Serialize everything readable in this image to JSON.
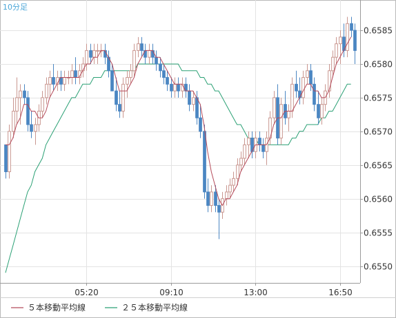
{
  "header": {
    "timeframe_label": "10分足"
  },
  "colors": {
    "up_candle_fill": "#ffffff",
    "up_candle_border": "#c9968f",
    "down_candle_fill": "#4b86c2",
    "down_candle_border": "#4b86c2",
    "ma5": "#b54a5a",
    "ma25": "#2aa074",
    "grid": "#e3e3e3",
    "axis": "#9a9a9a"
  },
  "legend": [
    {
      "label": "５本移動平均線",
      "color": "#b54a5a"
    },
    {
      "label": "２５本移動平均線",
      "color": "#2aa074"
    }
  ],
  "chart_data": {
    "type": "candlestick",
    "x_ticks": [
      {
        "label": "05:20",
        "index": 22
      },
      {
        "label": "09:10",
        "index": 45
      },
      {
        "label": "13:00",
        "index": 68
      },
      {
        "label": "16:50",
        "index": 91
      }
    ],
    "y_ticks": [
      "0.6585",
      "0.6580",
      "0.6575",
      "0.6570",
      "0.6565",
      "0.6560",
      "0.6555",
      "0.6550"
    ],
    "ylim": [
      0.65475,
      0.65895
    ],
    "grid": true,
    "legend_position": "bottom-left",
    "ohlc": [
      [
        0.6568,
        0.6568,
        0.6563,
        0.6564
      ],
      [
        0.6564,
        0.6571,
        0.6563,
        0.657
      ],
      [
        0.657,
        0.6575,
        0.6569,
        0.6573
      ],
      [
        0.6573,
        0.6578,
        0.6571,
        0.6575
      ],
      [
        0.6575,
        0.6577,
        0.6571,
        0.6576
      ],
      [
        0.6576,
        0.6577,
        0.6574,
        0.6575
      ],
      [
        0.6575,
        0.6576,
        0.657,
        0.6571
      ],
      [
        0.6571,
        0.6573,
        0.6569,
        0.657
      ],
      [
        0.657,
        0.6572,
        0.6568,
        0.6571
      ],
      [
        0.6571,
        0.6574,
        0.657,
        0.6573
      ],
      [
        0.6573,
        0.6576,
        0.6572,
        0.6575
      ],
      [
        0.6575,
        0.6578,
        0.6574,
        0.6577
      ],
      [
        0.6577,
        0.6579,
        0.6575,
        0.6578
      ],
      [
        0.6578,
        0.658,
        0.6576,
        0.6577
      ],
      [
        0.6577,
        0.6579,
        0.6576,
        0.6578
      ],
      [
        0.6578,
        0.6579,
        0.6576,
        0.6577
      ],
      [
        0.6577,
        0.6579,
        0.6576,
        0.6578
      ],
      [
        0.6578,
        0.6579,
        0.6577,
        0.6578
      ],
      [
        0.6578,
        0.658,
        0.6577,
        0.6579
      ],
      [
        0.6579,
        0.6581,
        0.6577,
        0.6578
      ],
      [
        0.6578,
        0.658,
        0.6577,
        0.6579
      ],
      [
        0.6579,
        0.6581,
        0.6578,
        0.658
      ],
      [
        0.658,
        0.6583,
        0.6579,
        0.6582
      ],
      [
        0.6582,
        0.6583,
        0.658,
        0.6581
      ],
      [
        0.6581,
        0.6583,
        0.658,
        0.6582
      ],
      [
        0.6582,
        0.6583,
        0.658,
        0.6582
      ],
      [
        0.6582,
        0.6583,
        0.6581,
        0.6582
      ],
      [
        0.6582,
        0.6583,
        0.658,
        0.6581
      ],
      [
        0.6581,
        0.6582,
        0.6578,
        0.6579
      ],
      [
        0.6579,
        0.658,
        0.6576,
        0.6576
      ],
      [
        0.6576,
        0.6578,
        0.6573,
        0.6574
      ],
      [
        0.6574,
        0.6576,
        0.6572,
        0.6573
      ],
      [
        0.6573,
        0.6578,
        0.6572,
        0.6577
      ],
      [
        0.6577,
        0.6579,
        0.6575,
        0.6578
      ],
      [
        0.6578,
        0.658,
        0.6577,
        0.6579
      ],
      [
        0.6579,
        0.6583,
        0.6578,
        0.6582
      ],
      [
        0.6582,
        0.6584,
        0.6581,
        0.6583
      ],
      [
        0.6583,
        0.6584,
        0.6581,
        0.6582
      ],
      [
        0.6582,
        0.6583,
        0.658,
        0.6581
      ],
      [
        0.6581,
        0.6583,
        0.658,
        0.6582
      ],
      [
        0.6582,
        0.6583,
        0.658,
        0.6581
      ],
      [
        0.6581,
        0.6582,
        0.6579,
        0.658
      ],
      [
        0.658,
        0.6581,
        0.6578,
        0.6579
      ],
      [
        0.6579,
        0.658,
        0.6577,
        0.6578
      ],
      [
        0.6578,
        0.6579,
        0.6576,
        0.6577
      ],
      [
        0.6577,
        0.6578,
        0.6575,
        0.6576
      ],
      [
        0.6576,
        0.6578,
        0.6575,
        0.6577
      ],
      [
        0.6577,
        0.6578,
        0.6575,
        0.6576
      ],
      [
        0.6576,
        0.6578,
        0.6575,
        0.6577
      ],
      [
        0.6577,
        0.6578,
        0.6575,
        0.6576
      ],
      [
        0.6576,
        0.6577,
        0.6573,
        0.6574
      ],
      [
        0.6574,
        0.6576,
        0.6573,
        0.6575
      ],
      [
        0.6575,
        0.6576,
        0.6571,
        0.6572
      ],
      [
        0.6572,
        0.6574,
        0.6569,
        0.657
      ],
      [
        0.657,
        0.6571,
        0.656,
        0.6561
      ],
      [
        0.6561,
        0.6563,
        0.6558,
        0.6559
      ],
      [
        0.6559,
        0.6562,
        0.6558,
        0.6561
      ],
      [
        0.6561,
        0.6562,
        0.6558,
        0.6559
      ],
      [
        0.6559,
        0.656,
        0.6554,
        0.6558
      ],
      [
        0.6558,
        0.6561,
        0.6557,
        0.656
      ],
      [
        0.656,
        0.6562,
        0.6559,
        0.6561
      ],
      [
        0.6561,
        0.6563,
        0.656,
        0.6562
      ],
      [
        0.6562,
        0.6564,
        0.6561,
        0.6563
      ],
      [
        0.6563,
        0.6566,
        0.6562,
        0.6565
      ],
      [
        0.6565,
        0.6567,
        0.6564,
        0.6566
      ],
      [
        0.6566,
        0.6569,
        0.6565,
        0.6568
      ],
      [
        0.6568,
        0.657,
        0.6566,
        0.6569
      ],
      [
        0.6569,
        0.657,
        0.6566,
        0.6567
      ],
      [
        0.6567,
        0.657,
        0.6566,
        0.6569
      ],
      [
        0.6569,
        0.657,
        0.6567,
        0.6568
      ],
      [
        0.6568,
        0.6569,
        0.6566,
        0.6567
      ],
      [
        0.6567,
        0.657,
        0.6565,
        0.6569
      ],
      [
        0.6569,
        0.6573,
        0.6568,
        0.6572
      ],
      [
        0.6572,
        0.6576,
        0.6571,
        0.6575
      ],
      [
        0.6575,
        0.6577,
        0.6568,
        0.6569
      ],
      [
        0.6569,
        0.6575,
        0.6568,
        0.6574
      ],
      [
        0.6574,
        0.6576,
        0.6571,
        0.6572
      ],
      [
        0.6572,
        0.6574,
        0.657,
        0.6573
      ],
      [
        0.6573,
        0.6578,
        0.6572,
        0.6577
      ],
      [
        0.6577,
        0.6579,
        0.6575,
        0.6576
      ],
      [
        0.6576,
        0.6578,
        0.6574,
        0.6575
      ],
      [
        0.6575,
        0.6579,
        0.6574,
        0.6578
      ],
      [
        0.6578,
        0.658,
        0.6577,
        0.6579
      ],
      [
        0.6579,
        0.658,
        0.6576,
        0.6577
      ],
      [
        0.6577,
        0.6578,
        0.6573,
        0.6574
      ],
      [
        0.6574,
        0.6576,
        0.6571,
        0.6572
      ],
      [
        0.6572,
        0.6575,
        0.6571,
        0.6574
      ],
      [
        0.6574,
        0.6577,
        0.6573,
        0.6576
      ],
      [
        0.6576,
        0.658,
        0.6575,
        0.6579
      ],
      [
        0.6579,
        0.6582,
        0.6578,
        0.6581
      ],
      [
        0.6581,
        0.6584,
        0.658,
        0.6583
      ],
      [
        0.6583,
        0.6585,
        0.658,
        0.6584
      ],
      [
        0.6584,
        0.6586,
        0.6581,
        0.6582
      ],
      [
        0.6582,
        0.6587,
        0.6581,
        0.6586
      ],
      [
        0.6586,
        0.6587,
        0.6584,
        0.6585
      ],
      [
        0.6585,
        0.6586,
        0.658,
        0.6582
      ]
    ],
    "series": [
      {
        "name": "５本移動平均線",
        "values": [
          0.6568,
          0.6568,
          0.6569,
          0.6571,
          0.6572,
          0.6574,
          0.6574,
          0.6573,
          0.6573,
          0.6572,
          0.6572,
          0.6573,
          0.6575,
          0.6576,
          0.6577,
          0.6578,
          0.6578,
          0.6578,
          0.6578,
          0.6578,
          0.6578,
          0.6579,
          0.658,
          0.658,
          0.6581,
          0.6581,
          0.6582,
          0.6582,
          0.6581,
          0.658,
          0.6578,
          0.6576,
          0.6576,
          0.6576,
          0.6577,
          0.6578,
          0.658,
          0.6581,
          0.6582,
          0.6582,
          0.6582,
          0.6581,
          0.6581,
          0.658,
          0.6579,
          0.6578,
          0.6577,
          0.6577,
          0.6577,
          0.6576,
          0.6576,
          0.6576,
          0.6575,
          0.6574,
          0.6571,
          0.6567,
          0.6564,
          0.6562,
          0.656,
          0.6559,
          0.656,
          0.656,
          0.6561,
          0.6562,
          0.6564,
          0.6565,
          0.6566,
          0.6567,
          0.6568,
          0.6568,
          0.6568,
          0.6568,
          0.6569,
          0.6571,
          0.6572,
          0.6572,
          0.6573,
          0.6573,
          0.6573,
          0.6574,
          0.6575,
          0.6576,
          0.6577,
          0.6577,
          0.6576,
          0.6576,
          0.6575,
          0.6575,
          0.6576,
          0.6578,
          0.658,
          0.6581,
          0.6582,
          0.6583,
          0.6584
        ]
      },
      {
        "name": "２５本移動平均線",
        "values": [
          0.6549,
          0.6551,
          0.6553,
          0.6555,
          0.6557,
          0.6559,
          0.6561,
          0.6562,
          0.6564,
          0.6565,
          0.6566,
          0.6568,
          0.6569,
          0.657,
          0.6571,
          0.6572,
          0.6573,
          0.6574,
          0.6575,
          0.6575,
          0.6576,
          0.6577,
          0.6577,
          0.6577,
          0.6578,
          0.6578,
          0.6578,
          0.6579,
          0.6579,
          0.6579,
          0.6579,
          0.6579,
          0.6579,
          0.6579,
          0.6579,
          0.6579,
          0.658,
          0.658,
          0.658,
          0.658,
          0.658,
          0.658,
          0.658,
          0.658,
          0.658,
          0.658,
          0.658,
          0.658,
          0.6579,
          0.6579,
          0.6579,
          0.6579,
          0.6579,
          0.6578,
          0.6578,
          0.6577,
          0.6577,
          0.6576,
          0.6576,
          0.6575,
          0.6574,
          0.6573,
          0.6572,
          0.6571,
          0.6571,
          0.657,
          0.6569,
          0.6569,
          0.6569,
          0.6568,
          0.6568,
          0.6568,
          0.6568,
          0.6568,
          0.6568,
          0.6568,
          0.6568,
          0.6568,
          0.6569,
          0.6569,
          0.657,
          0.657,
          0.6571,
          0.6571,
          0.6571,
          0.6571,
          0.6572,
          0.6572,
          0.6573,
          0.6573,
          0.6574,
          0.6575,
          0.6576,
          0.6577,
          0.6577
        ]
      }
    ]
  }
}
